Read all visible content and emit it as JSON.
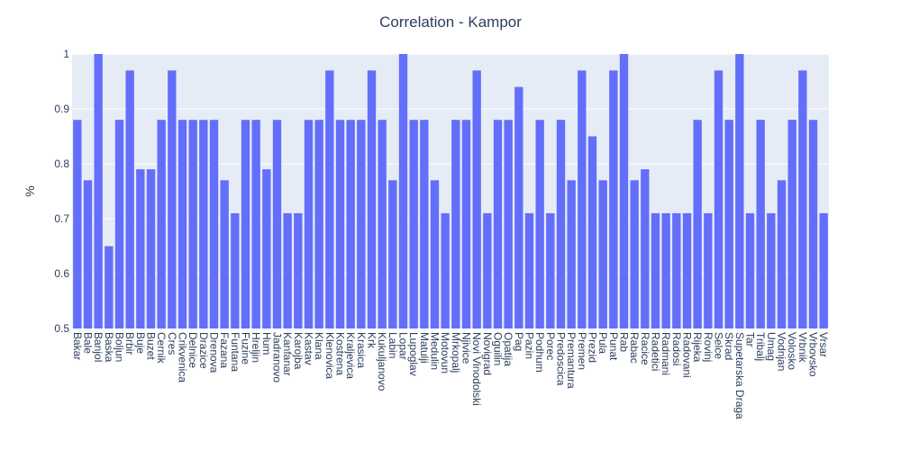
{
  "chart_data": {
    "type": "bar",
    "title": "Correlation - Kampor",
    "xlabel": "",
    "ylabel": "%",
    "ylim": [
      0.5,
      1.0
    ],
    "yticks": [
      "0.5",
      "0.6",
      "0.7",
      "0.8",
      "0.9",
      "1"
    ],
    "grid": true,
    "colors": {
      "bar": "#636efa",
      "plot_bg": "#e5ecf6",
      "text": "#2a3f5f",
      "grid": "#ffffff"
    },
    "categories": [
      "Bakar",
      "Bale",
      "Banjol",
      "Baska",
      "Boljun",
      "Brbir",
      "Buje",
      "Buzet",
      "Cernik",
      "Cres",
      "Crikvenica",
      "Delnice",
      "Drazice",
      "Drenova",
      "Fazana",
      "Funtana",
      "Fuzine",
      "Hreljin",
      "Hum",
      "Jadranovo",
      "Kanfanar",
      "Karojba",
      "Kastav",
      "Klana",
      "Klenovica",
      "Kostrena",
      "Kraljevica",
      "Krasica",
      "Krk",
      "Kukuljanovo",
      "Labin",
      "Lopar",
      "Lupoglav",
      "Matulji",
      "Medulin",
      "Motovun",
      "Mrkopalj",
      "Njivice",
      "Novi Vinodolski",
      "Novigrad",
      "Oguilin",
      "Opatija",
      "Pag",
      "Pazin",
      "Podhum",
      "Porec",
      "Predoscica",
      "Premantura",
      "Premen",
      "Prezid",
      "Pula",
      "Punat",
      "Rab",
      "Rabac",
      "Racice",
      "Radetici",
      "Radmani",
      "Radosi",
      "Radovani",
      "Rijeka",
      "Rovinj",
      "Selce",
      "Skrad",
      "Supetarska Draga",
      "Tar",
      "Tribalj",
      "Umag",
      "Vodnjan",
      "Volosko",
      "Vrbnik",
      "Vrbovsko",
      "Vrsar"
    ],
    "values": [
      0.88,
      0.77,
      1.0,
      0.65,
      0.88,
      0.97,
      0.79,
      0.79,
      0.88,
      0.97,
      0.88,
      0.88,
      0.88,
      0.88,
      0.77,
      0.71,
      0.88,
      0.88,
      0.79,
      0.88,
      0.71,
      0.71,
      0.88,
      0.88,
      0.97,
      0.88,
      0.88,
      0.88,
      0.97,
      0.88,
      0.77,
      1.0,
      0.88,
      0.88,
      0.77,
      0.71,
      0.88,
      0.88,
      0.97,
      0.71,
      0.88,
      0.88,
      0.94,
      0.71,
      0.88,
      0.71,
      0.88,
      0.77,
      0.97,
      0.85,
      0.77,
      0.97,
      1.0,
      0.77,
      0.79,
      0.71,
      0.71,
      0.71,
      0.71,
      0.88,
      0.71,
      0.97,
      0.88,
      1.0,
      0.71,
      0.88,
      0.71,
      0.77,
      0.88,
      0.97,
      0.88,
      0.71
    ]
  }
}
